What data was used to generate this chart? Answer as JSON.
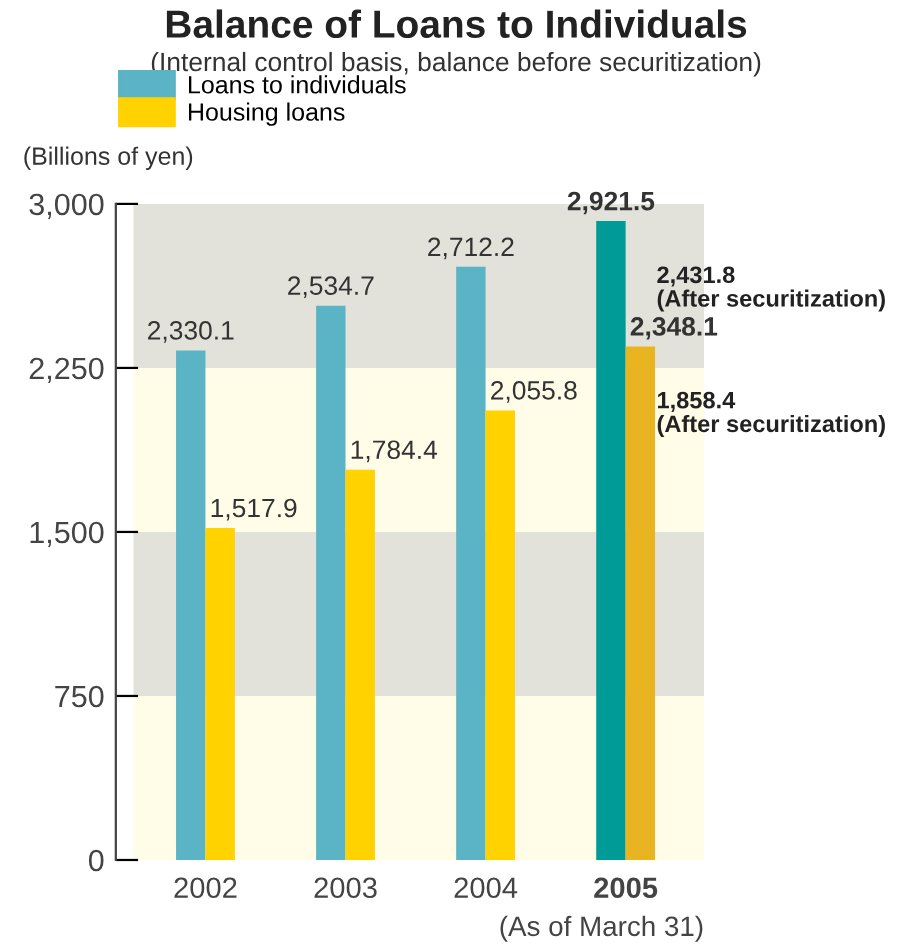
{
  "chart_data": {
    "type": "bar",
    "title": "Balance of Loans to Individuals",
    "subtitle": "(Internal control basis, balance before securitization)",
    "ylabel": "(Billions of yen)",
    "categories": [
      "2002",
      "2003",
      "2004",
      "2005"
    ],
    "series": [
      {
        "name": "Loans to individuals",
        "color": "#5ab4c5",
        "colors": [
          "#5ab4c5",
          "#5ab4c5",
          "#5ab4c5",
          "#009b96"
        ],
        "values": [
          2330.1,
          2534.7,
          2712.2,
          2921.5
        ],
        "value_labels": [
          "2,330.1",
          "2,534.7",
          "2,712.2",
          "2,921.5"
        ]
      },
      {
        "name": "Housing loans",
        "color": "#ffd200",
        "colors": [
          "#ffd200",
          "#ffd200",
          "#ffd200",
          "#e8b422"
        ],
        "values": [
          1517.9,
          1784.4,
          2055.8,
          2348.1
        ],
        "value_labels": [
          "1,517.9",
          "1,784.4",
          "2,055.8",
          "2,348.1"
        ]
      }
    ],
    "ylim": [
      0,
      3000
    ],
    "yticks": [
      0,
      {
        "value": 750,
        "label": "750"
      },
      {
        "value": 1500,
        "label": "1,500"
      },
      {
        "value": 2250,
        "label": "2,250"
      },
      {
        "value": 3000,
        "label": "3,000"
      }
    ],
    "bands": [
      {
        "axis": "y",
        "from": 0,
        "to": 750,
        "color": "#fffde8"
      },
      {
        "axis": "y",
        "from": 750,
        "to": 1500,
        "color": "#e2e2da"
      },
      {
        "axis": "y",
        "from": 1500,
        "to": 2250,
        "color": "#fffde8"
      },
      {
        "axis": "y",
        "from": 2250,
        "to": 3000,
        "color": "#e2e2da"
      }
    ],
    "annotations": [
      {
        "text": "2,431.8\n(After securitization)",
        "x": "2005",
        "y": 2431.8
      },
      {
        "text": "1,858.4\n(After securitization)",
        "x": "2005",
        "y": 1858.4
      },
      "(As of March 31)"
    ],
    "grid": false,
    "legend": "top left"
  }
}
